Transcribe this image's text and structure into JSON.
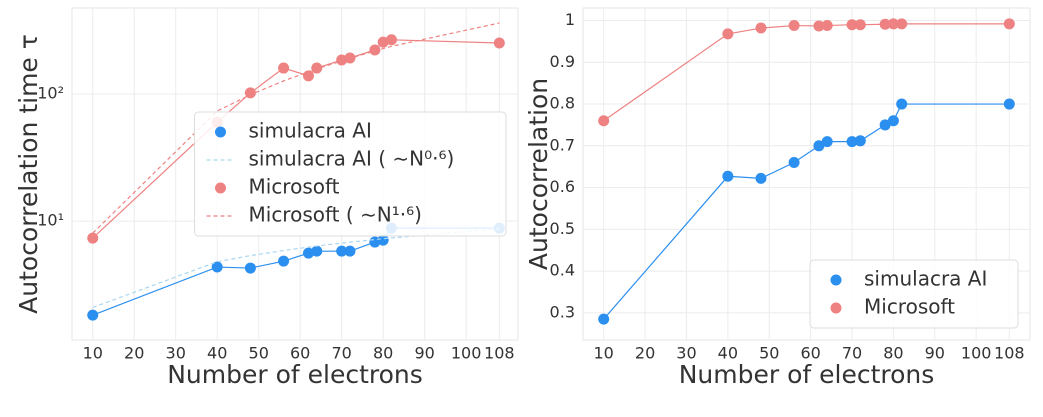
{
  "chart_data": [
    {
      "type": "line",
      "ylabel": "Autocorrelation time τ",
      "xlabel": "Number of electrons",
      "yscale": "log",
      "grid": true,
      "legend": "center right",
      "x": [
        10,
        40,
        48,
        56,
        62,
        64,
        70,
        72,
        78,
        80,
        82,
        108
      ],
      "xlim": [
        5,
        112.5
      ],
      "xticks": [
        10,
        20,
        30,
        40,
        50,
        60,
        70,
        80,
        90,
        100,
        108
      ],
      "ylim": [
        1.16,
        475
      ],
      "yticks": [
        {
          "value": 10,
          "label": "10¹"
        },
        {
          "value": 100,
          "label": "10²"
        }
      ],
      "series": [
        {
          "name": "simulacra AI",
          "color": "#2b8ff0",
          "marker": true,
          "style": "solid",
          "values": [
            1.82,
            4.35,
            4.27,
            4.84,
            5.6,
            5.8,
            5.8,
            5.8,
            6.84,
            7.08,
            8.8,
            8.8
          ]
        },
        {
          "name": "simulacra AI ( ∼N⁰·⁶)",
          "color": "#a9d6f2",
          "marker": false,
          "style": "dashed",
          "values": [
            2.09,
            4.79,
            5.35,
            5.87,
            6.24,
            6.36,
            6.71,
            6.83,
            7.16,
            7.27,
            7.37,
            8.7
          ]
        },
        {
          "name": "Microsoft",
          "color": "#ee8181",
          "marker": true,
          "style": "solid",
          "values": [
            7.35,
            60,
            102,
            160,
            139,
            160,
            185,
            192,
            222,
            256,
            267,
            252
          ]
        },
        {
          "name": "Microsoft ( ∼N¹·⁶)",
          "color": "#ee8181",
          "marker": false,
          "style": "dashed",
          "values": [
            8.04,
            73.5,
            98.7,
            126.7,
            149.4,
            157.4,
            182.3,
            191,
            218,
            227.6,
            237.3,
            362
          ]
        }
      ]
    },
    {
      "type": "line",
      "ylabel": "Autocorrelation",
      "xlabel": "Number of electrons",
      "grid": true,
      "legend": "lower right",
      "x": [
        10,
        40,
        48,
        56,
        62,
        64,
        70,
        72,
        78,
        80,
        82,
        108
      ],
      "xlim": [
        5,
        113
      ],
      "xticks": [
        10,
        20,
        30,
        40,
        50,
        60,
        70,
        80,
        90,
        100,
        108
      ],
      "ylim": [
        0.235,
        1.03
      ],
      "yticks": [
        0.3,
        0.4,
        0.5,
        0.6,
        0.7,
        0.8,
        0.9,
        1.0
      ],
      "series": [
        {
          "name": "simulacra AI",
          "color": "#2b8ff0",
          "marker": true,
          "style": "solid",
          "values": [
            0.285,
            0.627,
            0.622,
            0.66,
            0.7,
            0.71,
            0.71,
            0.712,
            0.75,
            0.76,
            0.8,
            0.8
          ]
        },
        {
          "name": "Microsoft",
          "color": "#ee8181",
          "marker": true,
          "style": "solid",
          "values": [
            0.76,
            0.968,
            0.982,
            0.988,
            0.987,
            0.988,
            0.99,
            0.99,
            0.991,
            0.992,
            0.992,
            0.992
          ]
        }
      ]
    }
  ]
}
